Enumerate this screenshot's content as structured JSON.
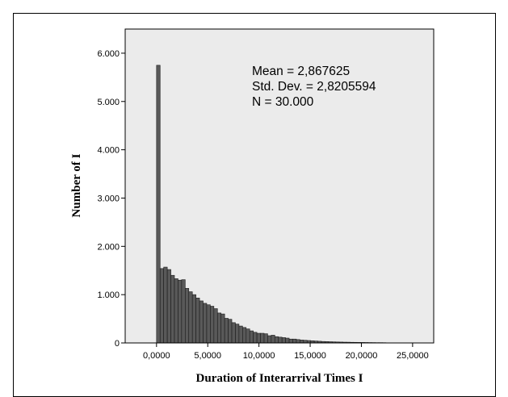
{
  "chart_data": {
    "type": "bar",
    "title": "",
    "xlabel": "Duration of Interarrival Times I",
    "ylabel": "Number of I",
    "xlim": [
      -3.06,
      27.06
    ],
    "ylim": [
      0,
      6500
    ],
    "bin_width": 0.35,
    "bin_start": 0,
    "xticks": [
      0,
      5,
      10,
      15,
      20,
      25
    ],
    "xtick_labels": [
      "0,0000",
      "5,0000",
      "10,0000",
      "15,0000",
      "20,0000",
      "25,0000"
    ],
    "yticks": [
      0,
      1000,
      2000,
      3000,
      4000,
      5000,
      6000
    ],
    "ytick_labels": [
      "0",
      "1.000",
      "2.000",
      "3.000",
      "4.000",
      "5.000",
      "6.000"
    ],
    "stats": [
      "Mean = 2,867625",
      "Std. Dev. = 2,8205594",
      "N = 30.000"
    ],
    "values": [
      5750,
      1540,
      1570,
      1520,
      1400,
      1330,
      1300,
      1310,
      1130,
      1060,
      1000,
      930,
      870,
      820,
      790,
      760,
      710,
      620,
      600,
      510,
      490,
      420,
      390,
      350,
      320,
      290,
      250,
      220,
      200,
      200,
      190,
      150,
      160,
      130,
      120,
      110,
      100,
      80,
      80,
      70,
      60,
      55,
      50,
      45,
      40,
      35,
      30,
      28,
      25,
      22,
      20,
      18,
      16,
      15,
      13,
      12,
      11,
      10,
      9,
      8,
      7,
      6,
      6,
      5
    ],
    "grid": false,
    "legend": "none",
    "colors": {
      "bar_fill": "#595959",
      "bar_stroke": "#1a1a1a",
      "plot_bg": "#ebebeb",
      "page_bg": "#ffffff"
    }
  }
}
